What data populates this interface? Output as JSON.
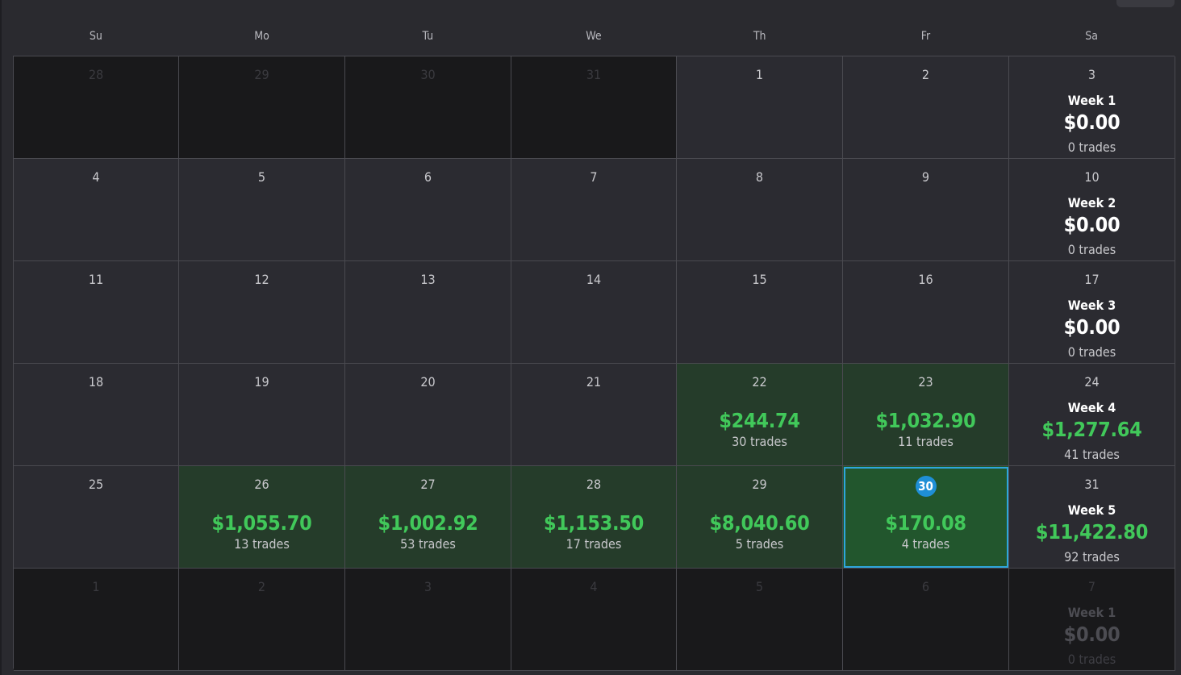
{
  "weekdays": [
    "Su",
    "Mo",
    "Tu",
    "We",
    "Th",
    "Fr",
    "Sa"
  ],
  "weeks": [
    {
      "days": [
        {
          "day": "28",
          "outside": true
        },
        {
          "day": "29",
          "outside": true
        },
        {
          "day": "30",
          "outside": true
        },
        {
          "day": "31",
          "outside": true
        },
        {
          "day": "1"
        },
        {
          "day": "2"
        },
        {
          "day": "3",
          "summary": {
            "label": "Week 1",
            "amount": "$0.00",
            "trades": "0 trades",
            "positive": false
          }
        }
      ]
    },
    {
      "days": [
        {
          "day": "4"
        },
        {
          "day": "5"
        },
        {
          "day": "6"
        },
        {
          "day": "7"
        },
        {
          "day": "8"
        },
        {
          "day": "9"
        },
        {
          "day": "10",
          "summary": {
            "label": "Week 2",
            "amount": "$0.00",
            "trades": "0 trades",
            "positive": false
          }
        }
      ]
    },
    {
      "days": [
        {
          "day": "11"
        },
        {
          "day": "12"
        },
        {
          "day": "13"
        },
        {
          "day": "14"
        },
        {
          "day": "15"
        },
        {
          "day": "16"
        },
        {
          "day": "17",
          "summary": {
            "label": "Week 3",
            "amount": "$0.00",
            "trades": "0 trades",
            "positive": false
          }
        }
      ]
    },
    {
      "days": [
        {
          "day": "18"
        },
        {
          "day": "19"
        },
        {
          "day": "20"
        },
        {
          "day": "21"
        },
        {
          "day": "22",
          "amount": "$244.74",
          "trades": "30 trades"
        },
        {
          "day": "23",
          "amount": "$1,032.90",
          "trades": "11 trades"
        },
        {
          "day": "24",
          "summary": {
            "label": "Week 4",
            "amount": "$1,277.64",
            "trades": "41 trades",
            "positive": true
          }
        }
      ]
    },
    {
      "days": [
        {
          "day": "25"
        },
        {
          "day": "26",
          "amount": "$1,055.70",
          "trades": "13 trades"
        },
        {
          "day": "27",
          "amount": "$1,002.92",
          "trades": "53 trades"
        },
        {
          "day": "28",
          "amount": "$1,153.50",
          "trades": "17 trades"
        },
        {
          "day": "29",
          "amount": "$8,040.60",
          "trades": "5 trades"
        },
        {
          "day": "30",
          "amount": "$170.08",
          "trades": "4 trades",
          "today": true
        },
        {
          "day": "31",
          "summary": {
            "label": "Week 5",
            "amount": "$11,422.80",
            "trades": "92 trades",
            "positive": true
          }
        }
      ]
    },
    {
      "days": [
        {
          "day": "1",
          "outside": true
        },
        {
          "day": "2",
          "outside": true
        },
        {
          "day": "3",
          "outside": true
        },
        {
          "day": "4",
          "outside": true
        },
        {
          "day": "5",
          "outside": true
        },
        {
          "day": "6",
          "outside": true
        },
        {
          "day": "7",
          "outside": true,
          "summary": {
            "label": "Week 1",
            "amount": "$0.00",
            "trades": "0 trades",
            "positive": false
          }
        }
      ]
    }
  ],
  "colors": {
    "profit": "#41c85a",
    "profit_cell": "#253c2a",
    "selected_cell": "#22562d",
    "today_badge": "#1f8fd6",
    "selection_border": "#2ea6dc"
  }
}
